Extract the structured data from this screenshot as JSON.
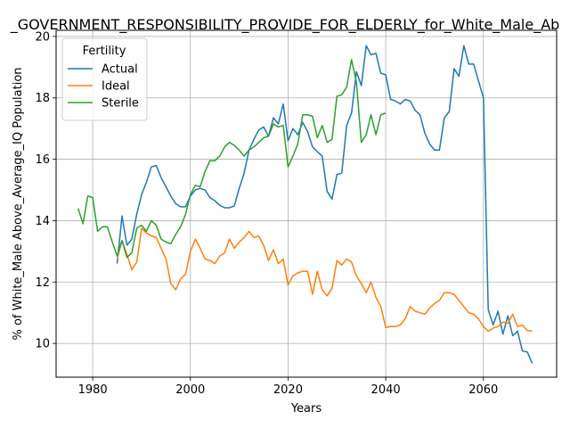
{
  "chart_data": {
    "type": "line",
    "title": "_GOVERNMENT_RESPONSIBILITY_PROVIDE_FOR_ELDERLY_for_White_Male_Ab",
    "xlabel": "Years",
    "ylabel": "% of White_Male Above_Average_IQ Population",
    "xlim": [
      1972.5,
      2075
    ],
    "ylim": [
      8.9,
      20.2
    ],
    "xticks": [
      1980,
      2000,
      2020,
      2040,
      2060
    ],
    "yticks": [
      10,
      12,
      14,
      16,
      18,
      20
    ],
    "grid": true,
    "legend": {
      "title": "Fertility",
      "position": "top-left"
    },
    "series": [
      {
        "name": "Actual",
        "color": "#1f77b4",
        "points": [
          [
            1985,
            12.6
          ],
          [
            1986,
            14.15
          ],
          [
            1987,
            13.2
          ],
          [
            1988,
            13.4
          ],
          [
            1989,
            14.2
          ],
          [
            1990,
            14.85
          ],
          [
            1991,
            15.25
          ],
          [
            1992,
            15.75
          ],
          [
            1993,
            15.8
          ],
          [
            1994,
            15.4
          ],
          [
            1995,
            15.1
          ],
          [
            1996,
            14.8
          ],
          [
            1997,
            14.55
          ],
          [
            1998,
            14.45
          ],
          [
            1999,
            14.45
          ],
          [
            2000,
            14.8
          ],
          [
            2001,
            15.0
          ],
          [
            2002,
            15.05
          ],
          [
            2003,
            15.0
          ],
          [
            2004,
            14.75
          ],
          [
            2005,
            14.65
          ],
          [
            2006,
            14.5
          ],
          [
            2007,
            14.42
          ],
          [
            2008,
            14.42
          ],
          [
            2009,
            14.48
          ],
          [
            2010,
            15.05
          ],
          [
            2011,
            15.55
          ],
          [
            2012,
            16.3
          ],
          [
            2013,
            16.65
          ],
          [
            2014,
            16.95
          ],
          [
            2015,
            17.05
          ],
          [
            2016,
            16.75
          ],
          [
            2017,
            17.35
          ],
          [
            2018,
            17.15
          ],
          [
            2019,
            17.8
          ],
          [
            2020,
            16.6
          ],
          [
            2021,
            17.0
          ],
          [
            2022,
            16.8
          ],
          [
            2023,
            17.2
          ],
          [
            2024,
            16.9
          ],
          [
            2025,
            16.4
          ],
          [
            2026,
            16.25
          ],
          [
            2027,
            16.1
          ],
          [
            2028,
            14.95
          ],
          [
            2029,
            14.7
          ],
          [
            2030,
            15.5
          ],
          [
            2031,
            15.55
          ],
          [
            2032,
            17.1
          ],
          [
            2033,
            17.5
          ],
          [
            2034,
            18.85
          ],
          [
            2035,
            18.4
          ],
          [
            2036,
            19.7
          ],
          [
            2037,
            19.4
          ],
          [
            2038,
            19.45
          ],
          [
            2039,
            18.8
          ],
          [
            2040,
            18.75
          ],
          [
            2041,
            17.95
          ],
          [
            2042,
            17.9
          ],
          [
            2043,
            17.8
          ],
          [
            2044,
            17.95
          ],
          [
            2045,
            17.9
          ],
          [
            2046,
            17.6
          ],
          [
            2047,
            17.45
          ],
          [
            2048,
            16.85
          ],
          [
            2049,
            16.5
          ],
          [
            2050,
            16.3
          ],
          [
            2051,
            16.3
          ],
          [
            2052,
            17.35
          ],
          [
            2053,
            17.55
          ],
          [
            2054,
            18.95
          ],
          [
            2055,
            18.7
          ],
          [
            2056,
            19.7
          ],
          [
            2057,
            19.1
          ],
          [
            2058,
            19.1
          ],
          [
            2059,
            18.55
          ],
          [
            2060,
            18.0
          ],
          [
            2061,
            11.1
          ],
          [
            2062,
            10.6
          ],
          [
            2063,
            11.05
          ],
          [
            2064,
            10.3
          ],
          [
            2065,
            10.9
          ],
          [
            2066,
            10.25
          ],
          [
            2067,
            10.4
          ],
          [
            2068,
            9.75
          ],
          [
            2069,
            9.72
          ],
          [
            2070,
            9.35
          ]
        ]
      },
      {
        "name": "Ideal",
        "color": "#ff7f0e",
        "points": [
          [
            1985,
            12.75
          ],
          [
            1986,
            13.35
          ],
          [
            1987,
            12.9
          ],
          [
            1988,
            12.4
          ],
          [
            1989,
            12.65
          ],
          [
            1990,
            13.75
          ],
          [
            1991,
            13.6
          ],
          [
            1992,
            13.5
          ],
          [
            1993,
            13.45
          ],
          [
            1994,
            13.1
          ],
          [
            1995,
            12.75
          ],
          [
            1996,
            11.95
          ],
          [
            1997,
            11.75
          ],
          [
            1998,
            12.1
          ],
          [
            1999,
            12.25
          ],
          [
            2000,
            13.0
          ],
          [
            2001,
            13.4
          ],
          [
            2002,
            13.1
          ],
          [
            2003,
            12.75
          ],
          [
            2004,
            12.7
          ],
          [
            2005,
            12.6
          ],
          [
            2006,
            12.85
          ],
          [
            2007,
            12.95
          ],
          [
            2008,
            13.4
          ],
          [
            2009,
            13.1
          ],
          [
            2010,
            13.3
          ],
          [
            2011,
            13.45
          ],
          [
            2012,
            13.65
          ],
          [
            2013,
            13.45
          ],
          [
            2014,
            13.5
          ],
          [
            2015,
            13.2
          ],
          [
            2016,
            12.7
          ],
          [
            2017,
            13.05
          ],
          [
            2018,
            12.6
          ],
          [
            2019,
            12.75
          ],
          [
            2020,
            11.9
          ],
          [
            2021,
            12.2
          ],
          [
            2022,
            12.3
          ],
          [
            2023,
            12.35
          ],
          [
            2024,
            12.35
          ],
          [
            2025,
            11.6
          ],
          [
            2026,
            12.35
          ],
          [
            2027,
            11.75
          ],
          [
            2028,
            11.55
          ],
          [
            2029,
            11.8
          ],
          [
            2030,
            12.7
          ],
          [
            2031,
            12.55
          ],
          [
            2032,
            12.75
          ],
          [
            2033,
            12.65
          ],
          [
            2034,
            12.2
          ],
          [
            2035,
            11.95
          ],
          [
            2036,
            11.65
          ],
          [
            2037,
            12.0
          ],
          [
            2038,
            11.5
          ],
          [
            2039,
            11.2
          ],
          [
            2040,
            10.52
          ],
          [
            2041,
            10.55
          ],
          [
            2042,
            10.55
          ],
          [
            2043,
            10.6
          ],
          [
            2044,
            10.8
          ],
          [
            2045,
            11.2
          ],
          [
            2046,
            11.05
          ],
          [
            2047,
            11.0
          ],
          [
            2048,
            10.95
          ],
          [
            2049,
            11.15
          ],
          [
            2050,
            11.3
          ],
          [
            2051,
            11.4
          ],
          [
            2052,
            11.65
          ],
          [
            2053,
            11.65
          ],
          [
            2054,
            11.6
          ],
          [
            2055,
            11.4
          ],
          [
            2056,
            11.2
          ],
          [
            2057,
            11.0
          ],
          [
            2058,
            10.95
          ],
          [
            2059,
            10.8
          ],
          [
            2060,
            10.55
          ],
          [
            2061,
            10.4
          ],
          [
            2062,
            10.5
          ],
          [
            2063,
            10.55
          ],
          [
            2064,
            10.7
          ],
          [
            2065,
            10.65
          ],
          [
            2066,
            10.95
          ],
          [
            2067,
            10.55
          ],
          [
            2068,
            10.6
          ],
          [
            2069,
            10.42
          ],
          [
            2070,
            10.4
          ]
        ]
      },
      {
        "name": "Sterile",
        "color": "#2ca02c",
        "points": [
          [
            1977,
            14.4
          ],
          [
            1978,
            13.9
          ],
          [
            1979,
            14.8
          ],
          [
            1980,
            14.75
          ],
          [
            1981,
            13.65
          ],
          [
            1982,
            13.8
          ],
          [
            1983,
            13.8
          ],
          [
            1984,
            13.3
          ],
          [
            1985,
            12.85
          ],
          [
            1986,
            13.35
          ],
          [
            1987,
            12.8
          ],
          [
            1988,
            12.95
          ],
          [
            1989,
            13.75
          ],
          [
            1990,
            13.85
          ],
          [
            1991,
            13.65
          ],
          [
            1992,
            14.0
          ],
          [
            1993,
            13.85
          ],
          [
            1994,
            13.4
          ],
          [
            1995,
            13.3
          ],
          [
            1996,
            13.25
          ],
          [
            1997,
            13.55
          ],
          [
            1998,
            13.8
          ],
          [
            1999,
            14.2
          ],
          [
            2000,
            14.85
          ],
          [
            2001,
            15.15
          ],
          [
            2002,
            15.1
          ],
          [
            2003,
            15.6
          ],
          [
            2004,
            15.95
          ],
          [
            2005,
            15.95
          ],
          [
            2006,
            16.1
          ],
          [
            2007,
            16.4
          ],
          [
            2008,
            16.55
          ],
          [
            2009,
            16.45
          ],
          [
            2010,
            16.3
          ],
          [
            2011,
            16.1
          ],
          [
            2012,
            16.3
          ],
          [
            2013,
            16.4
          ],
          [
            2014,
            16.55
          ],
          [
            2015,
            16.7
          ],
          [
            2016,
            16.75
          ],
          [
            2017,
            17.15
          ],
          [
            2018,
            17.05
          ],
          [
            2019,
            17.1
          ],
          [
            2020,
            15.75
          ],
          [
            2021,
            16.1
          ],
          [
            2022,
            16.5
          ],
          [
            2023,
            17.45
          ],
          [
            2024,
            17.45
          ],
          [
            2025,
            17.4
          ],
          [
            2026,
            16.7
          ],
          [
            2027,
            17.1
          ],
          [
            2028,
            16.55
          ],
          [
            2029,
            16.65
          ],
          [
            2030,
            18.05
          ],
          [
            2031,
            18.1
          ],
          [
            2032,
            18.35
          ],
          [
            2033,
            19.25
          ],
          [
            2034,
            18.5
          ],
          [
            2035,
            16.55
          ],
          [
            2036,
            16.8
          ],
          [
            2037,
            17.45
          ],
          [
            2038,
            16.8
          ],
          [
            2039,
            17.45
          ],
          [
            2040,
            17.5
          ]
        ]
      }
    ]
  }
}
